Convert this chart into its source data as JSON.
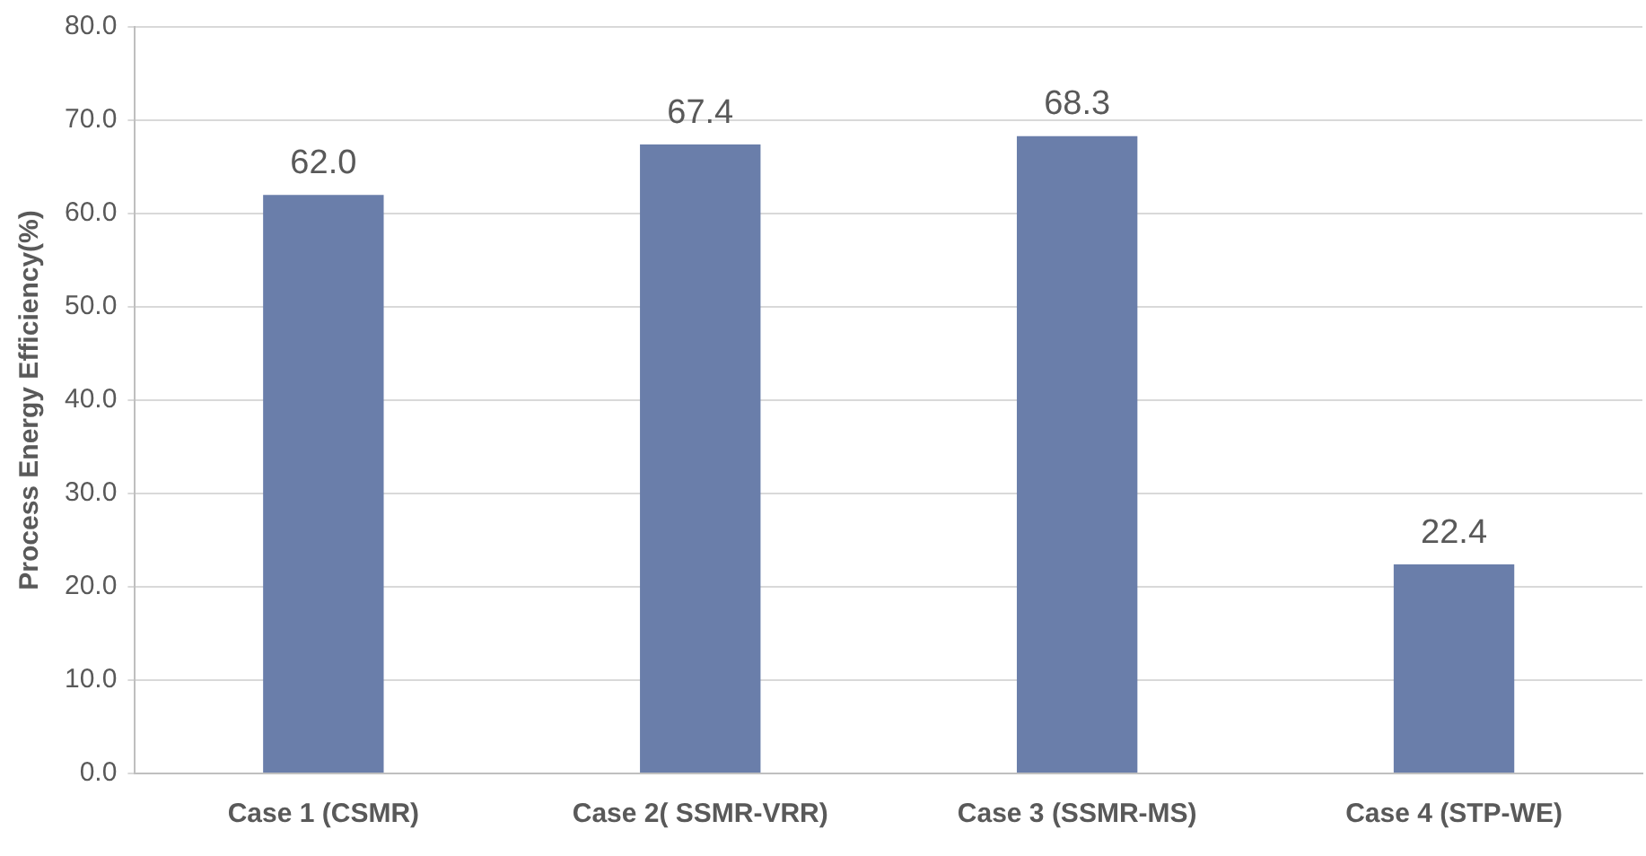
{
  "chart_data": {
    "type": "bar",
    "ylabel": "Process Energy Efficiency(%)",
    "categories": [
      "Case 1 (CSMR)",
      "Case 2( SSMR-VRR)",
      "Case 3 (SSMR-MS)",
      "Case 4 (STP-WE)"
    ],
    "values": [
      62.0,
      67.4,
      68.3,
      22.4
    ],
    "color": "#6a7eaa",
    "value_labels": [
      "62.0",
      "67.4",
      "68.3",
      "22.4"
    ],
    "ylim": [
      0,
      80
    ],
    "yticks": [
      {
        "value": 0,
        "label": "0.0"
      },
      {
        "value": 10,
        "label": "10.0"
      },
      {
        "value": 20,
        "label": "20.0"
      },
      {
        "value": 30,
        "label": "30.0"
      },
      {
        "value": 40,
        "label": "40.0"
      },
      {
        "value": 50,
        "label": "50.0"
      },
      {
        "value": 60,
        "label": "60.0"
      },
      {
        "value": 70,
        "label": "70.0"
      },
      {
        "value": 80,
        "label": "80.0"
      }
    ],
    "grid": "y"
  }
}
